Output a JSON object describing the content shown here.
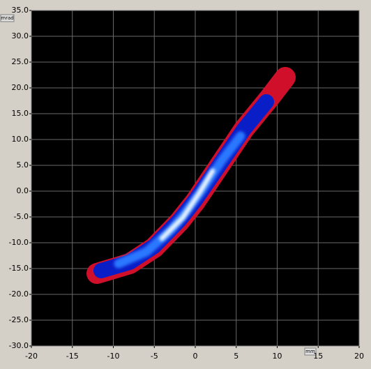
{
  "chart_data": {
    "type": "density",
    "x_unit": "mm",
    "y_unit": "mrad",
    "xlim": [
      -20,
      20
    ],
    "ylim": [
      -30,
      35
    ],
    "xticks": [
      -20,
      -15,
      -10,
      -5,
      0,
      5,
      10,
      15,
      20
    ],
    "yticks": [
      {
        "value": 35,
        "label": "35.0"
      },
      {
        "value": 30,
        "label": "30.0"
      },
      {
        "value": 25,
        "label": "25.0"
      },
      {
        "value": 20,
        "label": "20.0"
      },
      {
        "value": 15,
        "label": "15.0"
      },
      {
        "value": 10,
        "label": "10.0"
      },
      {
        "value": 5,
        "label": "5.0"
      },
      {
        "value": 0,
        "label": "0.0"
      },
      {
        "value": -5,
        "label": "-5.0"
      },
      {
        "value": -10,
        "label": "-10.0"
      },
      {
        "value": -15,
        "label": "-15.0"
      },
      {
        "value": -20,
        "label": "-20.0"
      },
      {
        "value": -25,
        "label": "-25.0"
      },
      {
        "value": -30,
        "label": "-30.0"
      }
    ],
    "grid": true
  }
}
